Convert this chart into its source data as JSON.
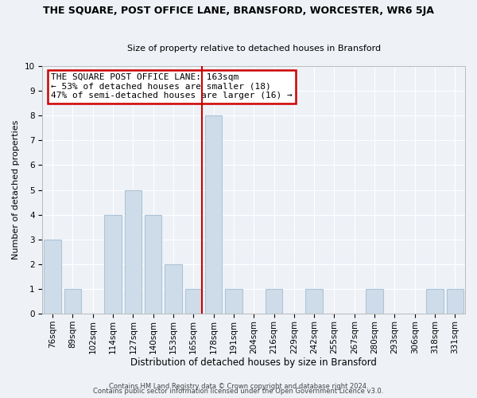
{
  "title": "THE SQUARE, POST OFFICE LANE, BRANSFORD, WORCESTER, WR6 5JA",
  "subtitle": "Size of property relative to detached houses in Bransford",
  "xlabel": "Distribution of detached houses by size in Bransford",
  "ylabel": "Number of detached properties",
  "bar_labels": [
    "76sqm",
    "89sqm",
    "102sqm",
    "114sqm",
    "127sqm",
    "140sqm",
    "153sqm",
    "165sqm",
    "178sqm",
    "191sqm",
    "204sqm",
    "216sqm",
    "229sqm",
    "242sqm",
    "255sqm",
    "267sqm",
    "280sqm",
    "293sqm",
    "306sqm",
    "318sqm",
    "331sqm"
  ],
  "bar_heights": [
    3,
    1,
    0,
    4,
    5,
    4,
    2,
    1,
    8,
    1,
    0,
    1,
    0,
    1,
    0,
    0,
    1,
    0,
    0,
    1,
    1
  ],
  "bar_color": "#cddce8",
  "bar_edge_color": "#aec4d8",
  "red_line_index": 7,
  "ylim": [
    0,
    10
  ],
  "yticks": [
    0,
    1,
    2,
    3,
    4,
    5,
    6,
    7,
    8,
    9,
    10
  ],
  "annotation_line1": "THE SQUARE POST OFFICE LANE: 163sqm",
  "annotation_line2": "← 53% of detached houses are smaller (18)",
  "annotation_line3": "47% of semi-detached houses are larger (16) →",
  "footer_line1": "Contains HM Land Registry data © Crown copyright and database right 2024.",
  "footer_line2": "Contains public sector information licensed under the Open Government Licence v3.0.",
  "background_color": "#eef2f7",
  "grid_color": "#ffffff",
  "annotation_box_facecolor": "#ffffff",
  "annotation_box_edgecolor": "#cc0000",
  "title_fontsize": 9.0,
  "subtitle_fontsize": 8.0,
  "xlabel_fontsize": 8.5,
  "ylabel_fontsize": 8.0,
  "tick_fontsize": 7.5,
  "footer_fontsize": 6.0,
  "annotation_fontsize": 8.0
}
